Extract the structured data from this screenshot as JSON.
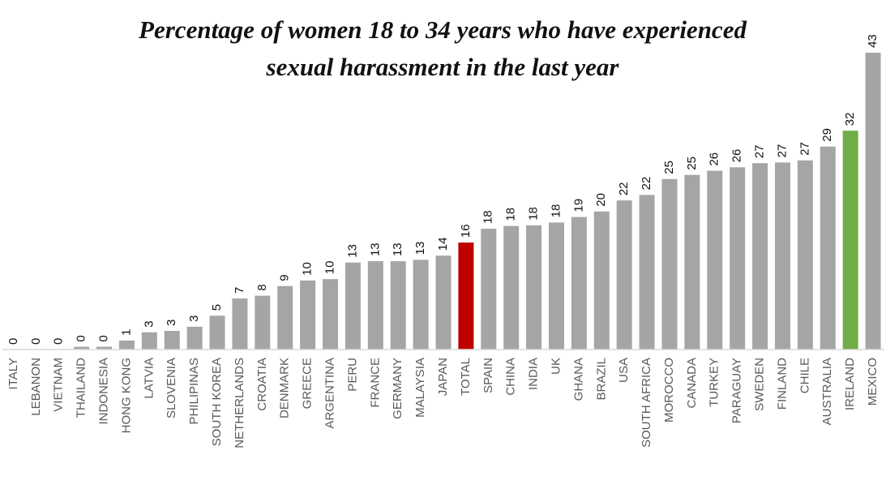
{
  "chart_data": {
    "type": "bar",
    "title": "Percentage of women 18 to 34 years who have experienced sexual harassment in the last year",
    "categories": [
      "ITALY",
      "LEBANON",
      "VIETNAM",
      "THAILAND",
      "INDONESIA",
      "HONG KONG",
      "LATVIA",
      "SLOVENIA",
      "PHILIPINAS",
      "SOUTH KOREA",
      "NETHERLANDS",
      "CROATIA",
      "DENMARK",
      "GREECE",
      "ARGENTINA",
      "PERU",
      "FRANCE",
      "GERMANY",
      "MALAYSIA",
      "JAPAN",
      "TOTAL",
      "SPAIN",
      "CHINA",
      "INDIA",
      "UK",
      "GHANA",
      "BRAZIL",
      "USA",
      "SOUTH AFRICA",
      "MOROCCO",
      "CANADA",
      "TURKEY",
      "PARAGUAY",
      "SWEDEN",
      "FINLAND",
      "CHILE",
      "AUSTRALIA",
      "IRELAND",
      "MEXICO"
    ],
    "values": [
      0,
      0,
      0,
      0.4,
      0.4,
      1.3,
      2.5,
      2.7,
      3.3,
      4.9,
      7.4,
      7.8,
      9.2,
      10.0,
      10.2,
      12.6,
      12.8,
      12.8,
      13.0,
      13.6,
      15.5,
      17.5,
      17.9,
      18.0,
      18.4,
      19.2,
      20.0,
      21.6,
      22.4,
      24.7,
      25.3,
      25.9,
      26.4,
      27.0,
      27.1,
      27.4,
      29.4,
      31.7,
      43
    ],
    "value_labels": [
      "0",
      "0",
      "0",
      "0",
      "0",
      "1",
      "3",
      "3",
      "3",
      "5",
      "7",
      "8",
      "9",
      "10",
      "10",
      "13",
      "13",
      "13",
      "13",
      "14",
      "16",
      "18",
      "18",
      "18",
      "18",
      "19",
      "20",
      "22",
      "22",
      "25",
      "25",
      "26",
      "26",
      "27",
      "27",
      "27",
      "29",
      "32",
      "43"
    ],
    "colors": [
      "#a5a5a5",
      "#a5a5a5",
      "#a5a5a5",
      "#a5a5a5",
      "#a5a5a5",
      "#a5a5a5",
      "#a5a5a5",
      "#a5a5a5",
      "#a5a5a5",
      "#a5a5a5",
      "#a5a5a5",
      "#a5a5a5",
      "#a5a5a5",
      "#a5a5a5",
      "#a5a5a5",
      "#a5a5a5",
      "#a5a5a5",
      "#a5a5a5",
      "#a5a5a5",
      "#a5a5a5",
      "#c00000",
      "#a5a5a5",
      "#a5a5a5",
      "#a5a5a5",
      "#a5a5a5",
      "#a5a5a5",
      "#a5a5a5",
      "#a5a5a5",
      "#a5a5a5",
      "#a5a5a5",
      "#a5a5a5",
      "#a5a5a5",
      "#a5a5a5",
      "#a5a5a5",
      "#a5a5a5",
      "#a5a5a5",
      "#a5a5a5",
      "#70ad47",
      "#a5a5a5"
    ]
  }
}
